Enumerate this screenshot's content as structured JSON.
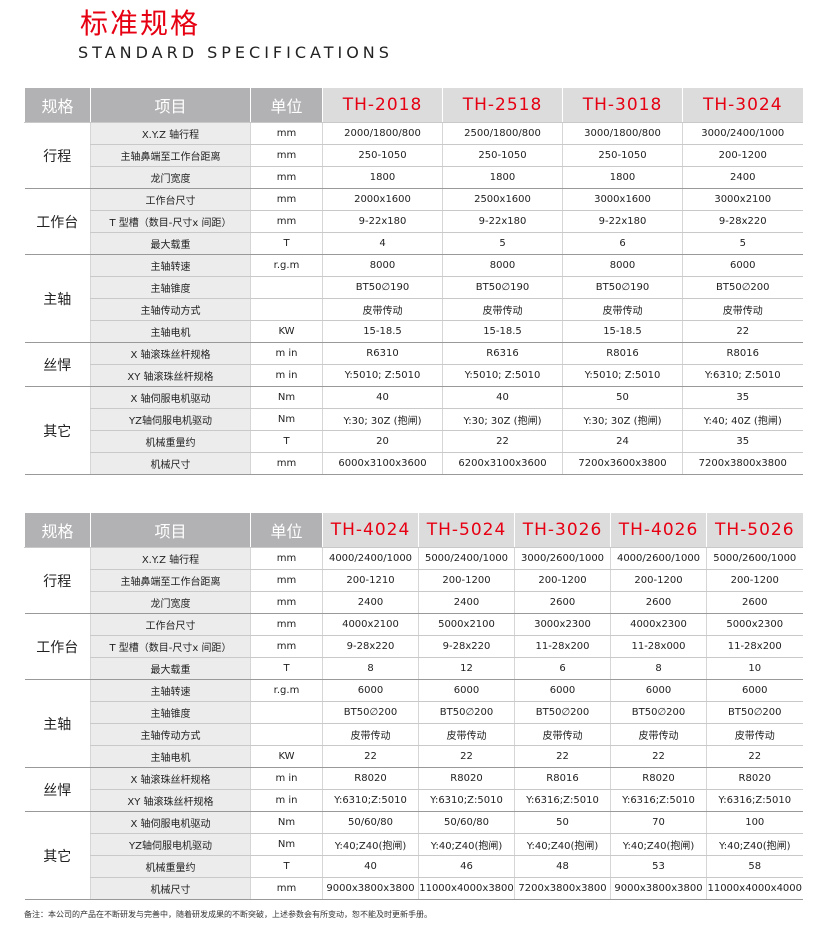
{
  "title": "标准规格",
  "subtitle": "STANDARD SPECIFICATIONS",
  "tables": [
    {
      "header": [
        "规格",
        "项目",
        "单位",
        "TH-2018",
        "TH-2518",
        "TH-3018",
        "TH-3024"
      ],
      "groups": [
        {
          "label": "行程",
          "rows": [
            [
              "X.Y.Z 轴行程",
              "mm",
              "2000/1800/800",
              "2500/1800/800",
              "3000/1800/800",
              "3000/2400/1000"
            ],
            [
              "主轴鼻端至工作台距离",
              "mm",
              "250-1050",
              "250-1050",
              "250-1050",
              "200-1200"
            ],
            [
              "龙门宽度",
              "mm",
              "1800",
              "1800",
              "1800",
              "2400"
            ]
          ]
        },
        {
          "label": "工作台",
          "rows": [
            [
              "工作台尺寸",
              "mm",
              "2000x1600",
              "2500x1600",
              "3000x1600",
              "3000x2100"
            ],
            [
              "T 型槽（数目-尺寸x 间距）",
              "mm",
              "9-22x180",
              "9-22x180",
              "9-22x180",
              "9-28x220"
            ],
            [
              "最大载重",
              "T",
              "4",
              "5",
              "6",
              "5"
            ]
          ]
        },
        {
          "label": "主轴",
          "rows": [
            [
              "主轴转速",
              "r.g.m",
              "8000",
              "8000",
              "8000",
              "6000"
            ],
            [
              "主轴锥度",
              "",
              "BT50∅190",
              "BT50∅190",
              "BT50∅190",
              "BT50∅200"
            ],
            [
              "主轴传动方式",
              "",
              "皮带传动",
              "皮带传动",
              "皮带传动",
              "皮带传动"
            ],
            [
              "主轴电机",
              "KW",
              "15-18.5",
              "15-18.5",
              "15-18.5",
              "22"
            ]
          ]
        },
        {
          "label": "丝悍",
          "rows": [
            [
              "X 轴滚珠丝杆规格",
              "m in",
              "R6310",
              "R6316",
              "R8016",
              "R8016"
            ],
            [
              "XY 轴滚珠丝杆规格",
              "m in",
              "Y:5010; Z:5010",
              "Y:5010; Z:5010",
              "Y:5010; Z:5010",
              "Y:6310; Z:5010"
            ]
          ]
        },
        {
          "label": "其它",
          "rows": [
            [
              "X 轴伺服电机驱动",
              "Nm",
              "40",
              "40",
              "50",
              "35"
            ],
            [
              "YZ轴伺服电机驱动",
              "Nm",
              "Y:30; 30Z (抱闸)",
              "Y:30; 30Z (抱闸)",
              "Y:30; 30Z (抱闸)",
              "Y:40; 40Z (抱闸)"
            ],
            [
              "机械重量约",
              "T",
              "20",
              "22",
              "24",
              "35"
            ],
            [
              "机械尺寸",
              "mm",
              "6000x3100x3600",
              "6200x3100x3600",
              "7200x3600x3800",
              "7200x3800x3800"
            ]
          ]
        }
      ]
    },
    {
      "header": [
        "规格",
        "项目",
        "单位",
        "TH-4024",
        "TH-5024",
        "TH-3026",
        "TH-4026",
        "TH-5026"
      ],
      "groups": [
        {
          "label": "行程",
          "rows": [
            [
              "X.Y.Z 轴行程",
              "mm",
              "4000/2400/1000",
              "5000/2400/1000",
              "3000/2600/1000",
              "4000/2600/1000",
              "5000/2600/1000"
            ],
            [
              "主轴鼻端至工作台距离",
              "mm",
              "200-1210",
              "200-1200",
              "200-1200",
              "200-1200",
              "200-1200"
            ],
            [
              "龙门宽度",
              "mm",
              "2400",
              "2400",
              "2600",
              "2600",
              "2600"
            ]
          ]
        },
        {
          "label": "工作台",
          "rows": [
            [
              "工作台尺寸",
              "mm",
              "4000x2100",
              "5000x2100",
              "3000x2300",
              "4000x2300",
              "5000x2300"
            ],
            [
              "T 型槽（数目-尺寸x 间距）",
              "mm",
              "9-28x220",
              "9-28x220",
              "11-28x200",
              "11-28x000",
              "11-28x200"
            ],
            [
              "最大载重",
              "T",
              "8",
              "12",
              "6",
              "8",
              "10"
            ]
          ]
        },
        {
          "label": "主轴",
          "rows": [
            [
              "主轴转速",
              "r.g.m",
              "6000",
              "6000",
              "6000",
              "6000",
              "6000"
            ],
            [
              "主轴锥度",
              "",
              "BT50∅200",
              "BT50∅200",
              "BT50∅200",
              "BT50∅200",
              "BT50∅200"
            ],
            [
              "主轴传动方式",
              "",
              "皮带传动",
              "皮带传动",
              "皮带传动",
              "皮带传动",
              "皮带传动"
            ],
            [
              "主轴电机",
              "KW",
              "22",
              "22",
              "22",
              "22",
              "22"
            ]
          ]
        },
        {
          "label": "丝悍",
          "rows": [
            [
              "X 轴滚珠丝杆规格",
              "m in",
              "R8020",
              "R8020",
              "R8016",
              "R8020",
              "R8020"
            ],
            [
              "XY 轴滚珠丝杆规格",
              "m in",
              "Y:6310;Z:5010",
              "Y:6310;Z:5010",
              "Y:6316;Z:5010",
              "Y:6316;Z:5010",
              "Y:6316;Z:5010"
            ]
          ]
        },
        {
          "label": "其它",
          "rows": [
            [
              "X 轴伺服电机驱动",
              "Nm",
              "50/60/80",
              "50/60/80",
              "50",
              "70",
              "100"
            ],
            [
              "YZ轴伺服电机驱动",
              "Nm",
              "Y:40;Z40(抱闸)",
              "Y:40;Z40(抱闸)",
              "Y:40;Z40(抱闸)",
              "Y:40;Z40(抱闸)",
              "Y:40;Z40(抱闸)"
            ],
            [
              "机械重量约",
              "T",
              "40",
              "46",
              "48",
              "53",
              "58"
            ],
            [
              "机械尺寸",
              "mm",
              "9000x3800x3800",
              "11000x4000x3800",
              "7200x3800x3800",
              "9000x3800x3800",
              "11000x4000x4000"
            ]
          ]
        }
      ]
    }
  ],
  "footnote": "备注：本公司的产品在不断研发与完善中，随着研发成果的不断突破，上述参数会有所变动，恕不能及时更新手册。"
}
